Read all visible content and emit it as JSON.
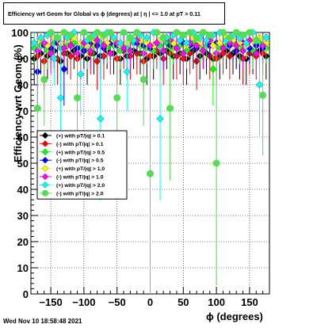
{
  "title": "Efficiency wrt Geom for Global vs ϕ (degrees) at |  η | <= 1.0 at pT > 0.11",
  "footer_timestamp": "Wed Nov 10 18:58:48 2021",
  "chart_data": {
    "type": "scatter",
    "title": "Efficiency wrt Geom for Global vs ϕ (degrees) at |  η | <= 1.0 at pT > 0.11",
    "xlabel": "ϕ (degrees)",
    "ylabel": "Efficiency wrt Geom (%)",
    "xlim": [
      -180,
      180
    ],
    "ylim": [
      0,
      100
    ],
    "x_ticks": [
      -150,
      -100,
      -50,
      0,
      50,
      100,
      150
    ],
    "x_tick_labels": [
      "−150",
      "−100",
      "−50",
      "0",
      "50",
      "100",
      "150"
    ],
    "y_ticks": [
      0,
      10,
      20,
      30,
      40,
      50,
      60,
      70,
      80,
      90,
      100
    ],
    "grid": true,
    "legend_position": "center-left",
    "series": [
      {
        "name": "(+) with pT/|q| > 0.1",
        "color": "#000000",
        "marker": "diamond",
        "x": [
          -175,
          -165,
          -155,
          -145,
          -135,
          -125,
          -115,
          -105,
          -95,
          -85,
          -75,
          -65,
          -55,
          -45,
          -35,
          -25,
          -15,
          -5,
          5,
          15,
          25,
          35,
          45,
          55,
          65,
          75,
          85,
          95,
          105,
          115,
          125,
          135,
          145,
          155,
          165,
          175
        ],
        "y": [
          90,
          92,
          91,
          93,
          89,
          92,
          93,
          91,
          90,
          92,
          91,
          93,
          92,
          90,
          91,
          93,
          92,
          90,
          91,
          92,
          93,
          91,
          92,
          90,
          93,
          91,
          92,
          90,
          91,
          93,
          92,
          91,
          90,
          92,
          93,
          91
        ]
      },
      {
        "name": "(-) with pT/|q| > 0.1",
        "color": "#ff0000",
        "marker": "diamond",
        "x": [
          -170,
          -160,
          -150,
          -140,
          -130,
          -120,
          -110,
          -100,
          -90,
          -80,
          -70,
          -60,
          -50,
          -40,
          -30,
          -20,
          -10,
          0,
          10,
          20,
          30,
          40,
          50,
          60,
          70,
          80,
          90,
          100,
          110,
          120,
          130,
          140,
          150,
          160,
          170
        ],
        "y": [
          91,
          89,
          93,
          90,
          92,
          91,
          90,
          93,
          92,
          89,
          91,
          92,
          90,
          93,
          91,
          92,
          89,
          91,
          93,
          90,
          92,
          91,
          90,
          92,
          89,
          93,
          91,
          90,
          92,
          91,
          93,
          90,
          92,
          91,
          92
        ]
      },
      {
        "name": "(+) with pT/|q| > 0.5",
        "color": "#00ff00",
        "marker": "diamond",
        "x": [
          -175,
          -165,
          -155,
          -145,
          -135,
          -125,
          -115,
          -105,
          -95,
          -85,
          -75,
          -65,
          -55,
          -45,
          -35,
          -25,
          -15,
          -5,
          5,
          15,
          25,
          35,
          45,
          55,
          65,
          75,
          85,
          95,
          105,
          115,
          125,
          135,
          145,
          155,
          165,
          175
        ],
        "y": [
          94,
          95,
          93,
          96,
          94,
          95,
          96,
          94,
          93,
          95,
          96,
          94,
          95,
          93,
          94,
          96,
          95,
          94,
          93,
          95,
          96,
          94,
          95,
          93,
          96,
          94,
          95,
          86,
          94,
          95,
          96,
          94,
          95,
          93,
          96,
          94
        ]
      },
      {
        "name": "(-) with pT/|q| > 0.5",
        "color": "#0000ff",
        "marker": "diamond",
        "x": [
          -170,
          -160,
          -150,
          -140,
          -130,
          -120,
          -110,
          -100,
          -90,
          -80,
          -70,
          -60,
          -50,
          -40,
          -30,
          -20,
          -10,
          0,
          10,
          20,
          30,
          40,
          50,
          60,
          70,
          80,
          90,
          100,
          110,
          120,
          130,
          140,
          150,
          160,
          170
        ],
        "y": [
          85,
          95,
          94,
          96,
          86,
          95,
          94,
          93,
          96,
          95,
          94,
          96,
          95,
          94,
          93,
          96,
          95,
          94,
          96,
          93,
          95,
          94,
          96,
          95,
          94,
          93,
          95,
          96,
          94,
          95,
          93,
          96,
          94,
          95,
          94
        ]
      },
      {
        "name": "(+) with pT/|q| > 1.0",
        "color": "#ffff00",
        "marker": "diamond",
        "x": [
          -175,
          -165,
          -155,
          -145,
          -135,
          -125,
          -115,
          -105,
          -95,
          -85,
          -75,
          -65,
          -55,
          -45,
          -35,
          -25,
          -15,
          -5,
          5,
          15,
          25,
          35,
          45,
          55,
          65,
          75,
          85,
          95,
          105,
          115,
          125,
          135,
          145,
          155,
          165,
          175
        ],
        "y": [
          96,
          97,
          95,
          98,
          96,
          97,
          98,
          96,
          95,
          97,
          98,
          96,
          97,
          95,
          96,
          98,
          97,
          96,
          95,
          97,
          98,
          96,
          97,
          95,
          98,
          96,
          97,
          95,
          96,
          98,
          97,
          96,
          95,
          97,
          98,
          96
        ]
      },
      {
        "name": "(-) with pT/|q| > 1.0",
        "color": "#ff00ff",
        "marker": "diamond",
        "x": [
          -170,
          -160,
          -150,
          -140,
          -130,
          -120,
          -110,
          -100,
          -90,
          -80,
          -70,
          -60,
          -50,
          -40,
          -30,
          -20,
          -10,
          0,
          10,
          20,
          30,
          40,
          50,
          60,
          70,
          80,
          90,
          100,
          110,
          120,
          130,
          140,
          150,
          160,
          170
        ],
        "y": [
          93,
          96,
          92,
          97,
          94,
          95,
          92,
          96,
          93,
          97,
          95,
          92,
          96,
          94,
          93,
          97,
          92,
          95,
          96,
          93,
          97,
          94,
          92,
          96,
          95,
          93,
          97,
          92,
          94,
          96,
          95,
          93,
          97,
          92,
          95
        ]
      },
      {
        "name": "(+) with pT/|q| > 2.0",
        "color": "#00ffff",
        "marker": "diamond",
        "x": [
          -175,
          -165,
          -155,
          -145,
          -135,
          -125,
          -115,
          -105,
          -95,
          -85,
          -75,
          -65,
          -55,
          -45,
          -35,
          -25,
          -15,
          -5,
          5,
          15,
          25,
          35,
          45,
          55,
          65,
          75,
          85,
          95,
          105,
          115,
          125,
          135,
          145,
          155,
          165,
          175
        ],
        "y": [
          96,
          98,
          99,
          90,
          75,
          98,
          100,
          84,
          97,
          99,
          67,
          100,
          98,
          96,
          85,
          97,
          99,
          98,
          100,
          67,
          98,
          99,
          97,
          96,
          100,
          98,
          97,
          99,
          100,
          97,
          99,
          98,
          96,
          100,
          80,
          98
        ]
      },
      {
        "name": "(-) with pT/|q| > 2.0",
        "color": "#55dd55",
        "marker": "circle",
        "x": [
          -170,
          -160,
          -150,
          -140,
          -130,
          -120,
          -110,
          -100,
          -90,
          -80,
          -70,
          -60,
          -50,
          -40,
          -30,
          -20,
          -10,
          0,
          10,
          20,
          30,
          40,
          50,
          60,
          70,
          80,
          90,
          100,
          110,
          120,
          130,
          140,
          150,
          160,
          170
        ],
        "y": [
          71,
          82,
          100,
          98,
          100,
          99,
          75,
          100,
          98,
          100,
          99,
          100,
          75,
          100,
          98,
          100,
          82,
          46,
          100,
          98,
          71,
          100,
          99,
          100,
          98,
          100,
          99,
          50,
          100,
          98,
          100,
          99,
          100,
          97,
          76
        ]
      }
    ]
  }
}
